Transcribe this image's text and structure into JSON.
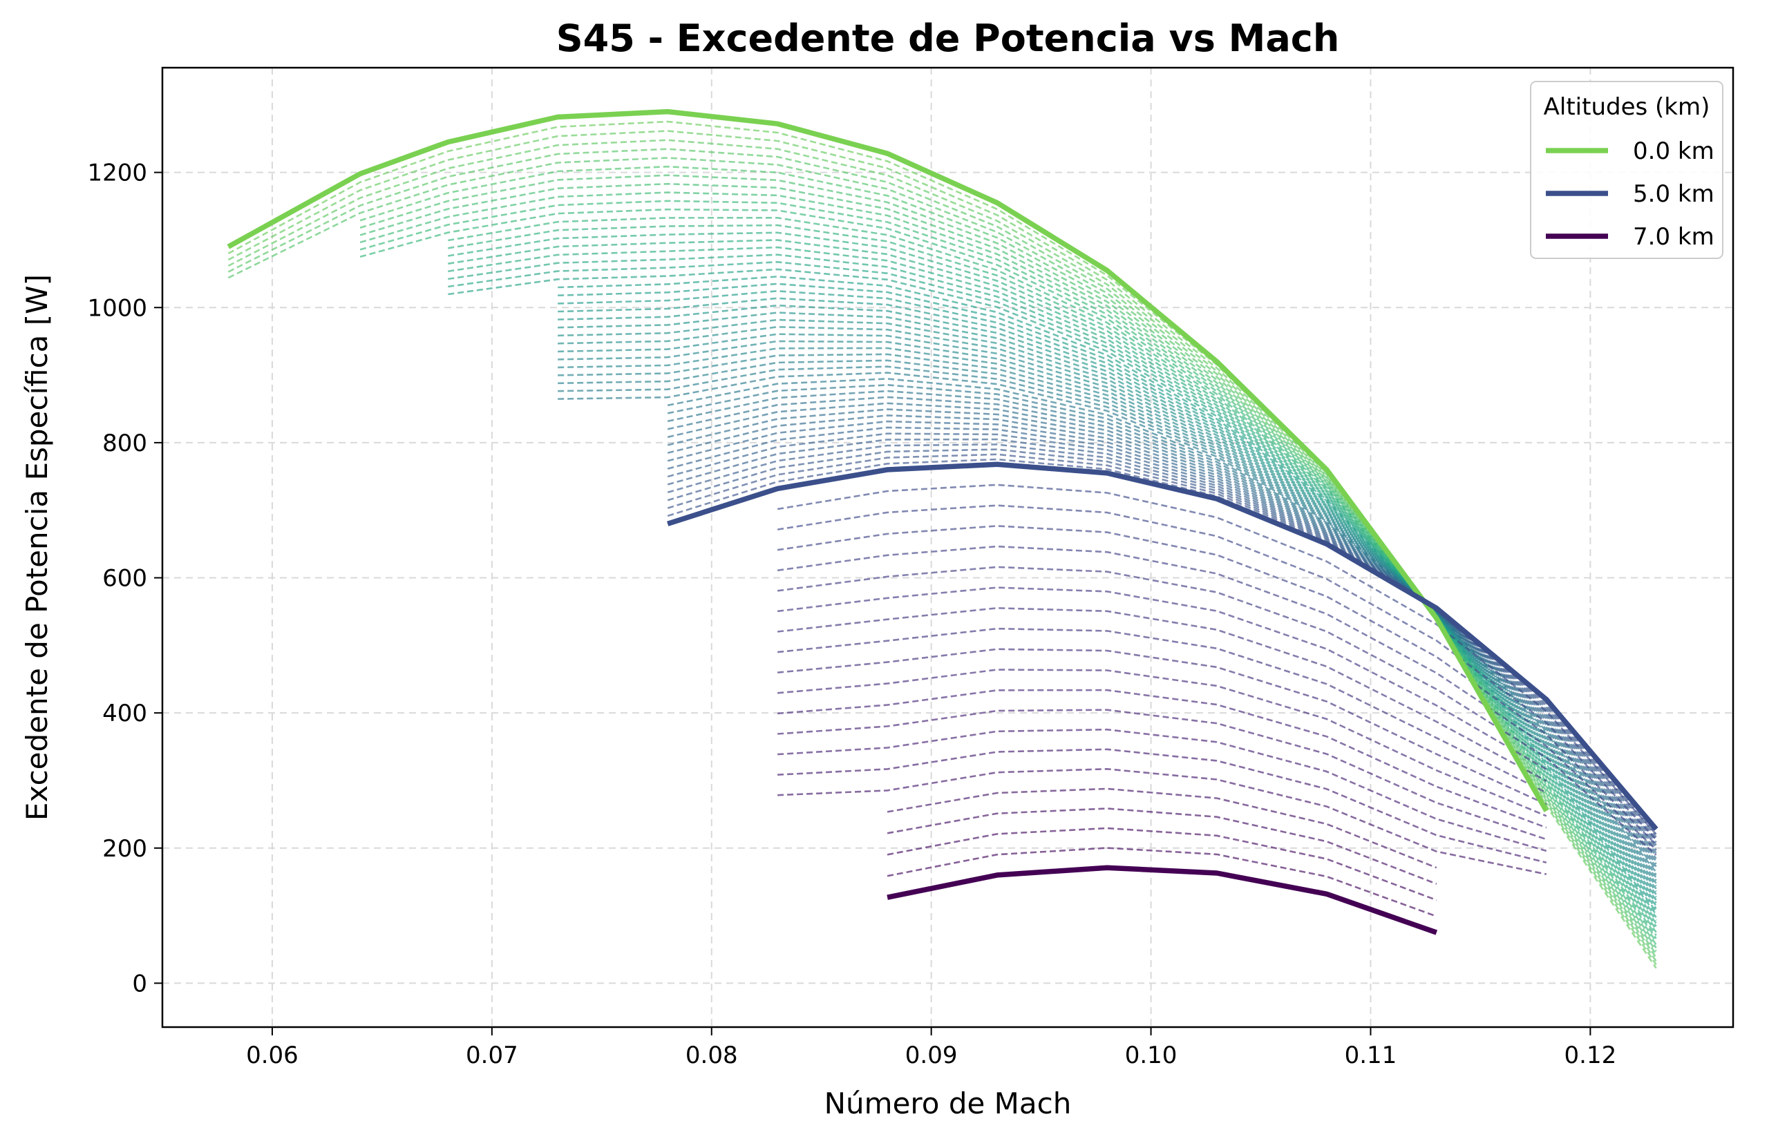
{
  "chart_data": {
    "type": "line",
    "title": "S45 - Excedente de Potencia vs Mach",
    "xlabel": "Número de Mach",
    "ylabel": "Excedente de Potencia Específica [W]",
    "xlim": [
      0.055,
      0.1265
    ],
    "ylim": [
      -65,
      1355
    ],
    "xticks": [
      "0.06",
      "0.07",
      "0.08",
      "0.09",
      "0.10",
      "0.11",
      "0.12"
    ],
    "xtick_values": [
      0.06,
      0.07,
      0.08,
      0.09,
      0.1,
      0.11,
      0.12
    ],
    "yticks": [
      "0",
      "200",
      "400",
      "600",
      "800",
      "1000",
      "1200"
    ],
    "ytick_values": [
      0,
      200,
      400,
      600,
      800,
      1000,
      1200
    ],
    "grid": true,
    "legend": {
      "title": "Altitudes (km)",
      "placement": "top-right",
      "entries": [
        "0.0 km",
        "5.0 km",
        "7.0 km"
      ]
    },
    "colors": {
      "alt_0": "#7ad151",
      "alt_5": "#3b4f8b",
      "alt_7": "#440154"
    },
    "highlighted_series": [
      {
        "name": "0.0 km",
        "color": "#7ad151",
        "x": [
          0.058,
          0.064,
          0.068,
          0.073,
          0.078,
          0.083,
          0.088,
          0.093,
          0.098,
          0.103,
          0.108,
          0.113,
          0.118
        ],
        "y": [
          1090,
          1198,
          1245,
          1282,
          1290,
          1272,
          1228,
          1155,
          1055,
          920,
          760,
          540,
          255
        ]
      },
      {
        "name": "5.0 km",
        "color": "#3b4f8b",
        "x": [
          0.078,
          0.083,
          0.088,
          0.093,
          0.098,
          0.103,
          0.108,
          0.113,
          0.118,
          0.123
        ],
        "y": [
          680,
          732,
          760,
          768,
          755,
          717,
          650,
          555,
          420,
          228
        ]
      },
      {
        "name": "7.0 km",
        "color": "#440154",
        "x": [
          0.088,
          0.093,
          0.098,
          0.103,
          0.108,
          0.113
        ],
        "y": [
          127,
          160,
          171,
          163,
          132,
          75
        ]
      }
    ],
    "intermediate_series": {
      "style": "dashed",
      "count": 69,
      "altitude_range_km": [
        0.1,
        6.9
      ],
      "colormap": "viridis",
      "description_units": "Mach vs W"
    }
  }
}
